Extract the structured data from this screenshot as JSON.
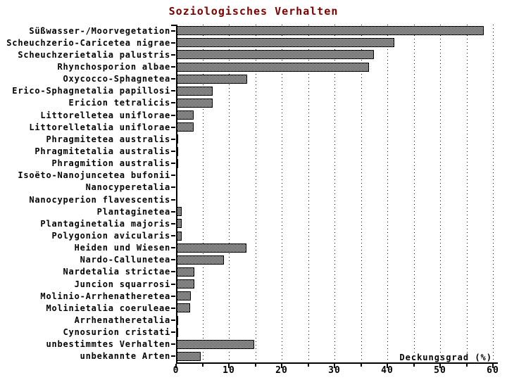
{
  "title": {
    "text": "Soziologisches Verhalten",
    "color": "#7a0000"
  },
  "chart_data": {
    "type": "bar",
    "orientation": "horizontal",
    "title": "Soziologisches Verhalten",
    "xlabel": "Deckungsgrad (%)",
    "ylabel": "",
    "xlim": [
      0,
      60
    ],
    "x_major_ticks": [
      0,
      10,
      20,
      30,
      40,
      50,
      60
    ],
    "x_minor_tick_step": 5,
    "gridlines": {
      "style": "dotted",
      "orientation": "vertical",
      "step": 5
    },
    "legend": "none",
    "bar_style": {
      "fill": "black-white-checker-dither",
      "border_color": "#000000"
    },
    "categories": [
      "Süßwasser-/Moorvegetation",
      "Scheuchzerio-Caricetea nigrae",
      "Scheuchzerietalia palustris",
      "Rhynchosporion albae",
      "Oxycocco-Sphagnetea",
      "Erico-Sphagnetalia papillosi",
      "Ericion tetralicis",
      "Littorelletea uniflorae",
      "Littorelletalia uniflorae",
      "Phragmitetea australis",
      "Phragmitetalia australis",
      "Phragmition australis",
      "Isoëto-Nanojuncetea bufonii",
      "Nanocyperetalia",
      "Nanocyperion flavescentis",
      "Plantaginetea",
      "Plantaginetalia majoris",
      "Polygonion avicularis",
      "Heiden und Wiesen",
      "Nardo-Callunetea",
      "Nardetalia strictae",
      "Juncion squarrosi",
      "Molinio-Arrhenatheretea",
      "Molinietalia coeruleae",
      "Arrhenatheretalia",
      "Cynosurion cristati",
      "unbestimmtes Verhalten",
      "unbekannte Arten"
    ],
    "values": [
      58.2,
      41.3,
      37.5,
      36.5,
      13.5,
      6.9,
      6.9,
      3.3,
      3.3,
      0.4,
      0.4,
      0.4,
      0.2,
      0.2,
      0.2,
      1.1,
      1.1,
      1.1,
      13.3,
      9.0,
      3.5,
      3.4,
      2.8,
      2.6,
      0.4,
      0.4,
      14.8,
      4.6
    ]
  }
}
